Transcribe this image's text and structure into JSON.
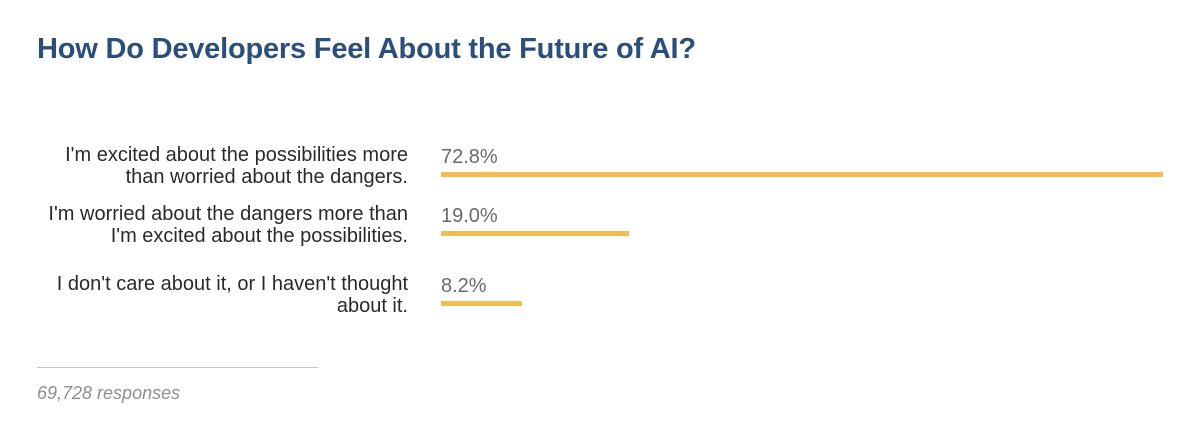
{
  "chart_data": {
    "type": "bar",
    "orientation": "horizontal",
    "title": "How Do Developers Feel About the Future of AI?",
    "categories": [
      "I'm excited about the possibilities more than worried about the dangers.",
      "I'm worried about the dangers more than I'm excited about the possibilities.",
      "I don't care about it, or I haven't thought about it."
    ],
    "values": [
      72.8,
      19.0,
      8.2
    ],
    "value_labels": [
      "72.8%",
      "19.0%",
      "8.2%"
    ],
    "unit": "%",
    "xlim": [
      0,
      72.8
    ],
    "grid": false,
    "bar_color": "#f2bc50",
    "footer": "69,728 responses"
  },
  "colors": {
    "title": "#2b4f7b",
    "bar": "#f2bc50"
  }
}
